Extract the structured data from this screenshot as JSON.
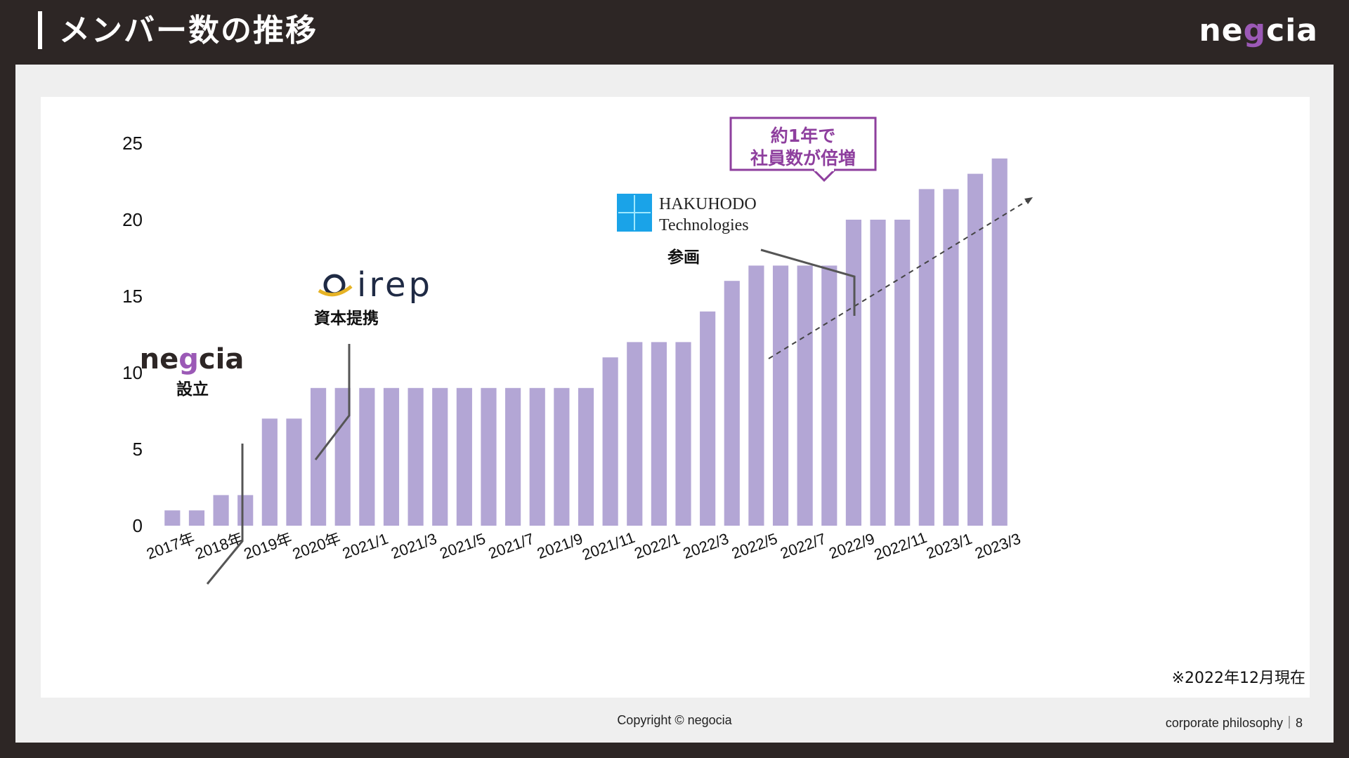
{
  "header": {
    "title": "メンバー数の推移",
    "logo_text_a": "ne",
    "logo_text_g": "g",
    "logo_text_b": "cia"
  },
  "footer": {
    "copyright": "Copyright © negocia",
    "page": "corporate philosophy｜8"
  },
  "note": "※2022年12月現在",
  "annotations": {
    "founding_logo_a": "ne",
    "founding_logo_g": "g",
    "founding_logo_b": "cia",
    "founding_label": "設立",
    "irep_logo": "irep",
    "irep_label": "資本提携",
    "hakuhodo_line1": "HAKUHODO",
    "hakuhodo_line2": "Technologies",
    "hakuhodo_label": "参画",
    "callout_line1": "約1年で",
    "callout_line2": "社員数が倍増"
  },
  "colors": {
    "bar": "#b3a6d5",
    "accent": "#8e3f9e",
    "background": "#2d2625"
  },
  "chart_data": {
    "type": "bar",
    "categories": [
      "2017年",
      "",
      "2018年",
      "",
      "2019年",
      "",
      "2020年",
      "",
      "2021/1",
      "",
      "2021/3",
      "",
      "2021/5",
      "",
      "2021/7",
      "",
      "2021/9",
      "",
      "2021/11",
      "",
      "2022/1",
      "",
      "2022/3",
      "",
      "2022/5",
      "",
      "2022/7",
      "",
      "2022/9",
      "",
      "2022/11",
      "",
      "2023/1",
      "",
      "2023/3"
    ],
    "values": [
      1,
      1,
      2,
      2,
      7,
      7,
      9,
      9,
      9,
      9,
      9,
      9,
      9,
      9,
      9,
      9,
      9,
      9,
      11,
      12,
      12,
      12,
      14,
      16,
      17,
      17,
      17,
      17,
      20,
      20,
      20,
      22,
      22,
      23,
      24
    ],
    "yticks": [
      0,
      5,
      10,
      15,
      20,
      25
    ],
    "ylim": [
      0,
      25
    ],
    "grid": false
  }
}
